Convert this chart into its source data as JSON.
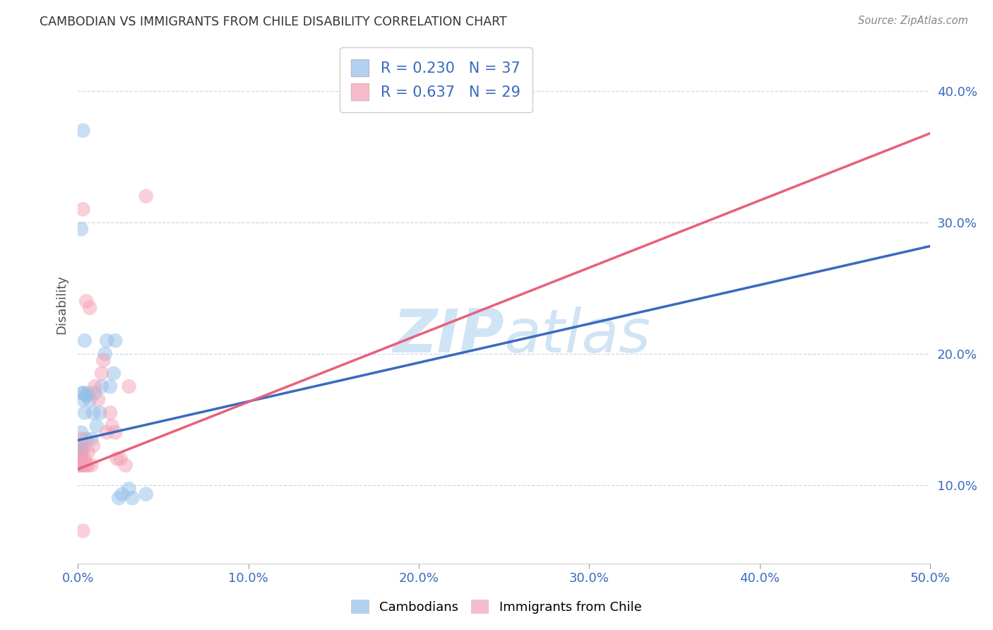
{
  "title": "CAMBODIAN VS IMMIGRANTS FROM CHILE DISABILITY CORRELATION CHART",
  "source": "Source: ZipAtlas.com",
  "xlabel_vals": [
    0.0,
    0.1,
    0.2,
    0.3,
    0.4,
    0.5
  ],
  "ylabel_vals": [
    0.1,
    0.2,
    0.3,
    0.4
  ],
  "xlim": [
    0.0,
    0.5
  ],
  "ylim": [
    0.04,
    0.435
  ],
  "cambodian_R": 0.23,
  "cambodian_N": 37,
  "chile_R": 0.637,
  "chile_N": 29,
  "cambodian_color": "#92bee8",
  "chile_color": "#f4a0b5",
  "cambodian_line_color": "#3a6abf",
  "chile_line_color": "#e8607a",
  "watermark_color": "#d0e4f5",
  "legend_label_cam": "Cambodians",
  "legend_label_chile": "Immigrants from Chile",
  "cambodian_line_x0": 0.0,
  "cambodian_line_y0": 0.134,
  "cambodian_line_x1": 0.5,
  "cambodian_line_y1": 0.282,
  "chile_line_x0": 0.0,
  "chile_line_y0": 0.112,
  "chile_line_x1": 0.5,
  "chile_line_y1": 0.368,
  "cambodian_x": [
    0.001,
    0.001,
    0.001,
    0.001,
    0.001,
    0.002,
    0.002,
    0.002,
    0.002,
    0.003,
    0.003,
    0.003,
    0.003,
    0.004,
    0.004,
    0.005,
    0.005,
    0.006,
    0.007,
    0.008,
    0.009,
    0.01,
    0.011,
    0.013,
    0.014,
    0.016,
    0.017,
    0.019,
    0.021,
    0.022,
    0.024,
    0.026,
    0.03,
    0.002,
    0.003,
    0.04,
    0.032
  ],
  "cambodian_y": [
    0.125,
    0.128,
    0.122,
    0.115,
    0.118,
    0.13,
    0.126,
    0.14,
    0.121,
    0.17,
    0.165,
    0.127,
    0.17,
    0.155,
    0.21,
    0.168,
    0.135,
    0.17,
    0.165,
    0.135,
    0.155,
    0.17,
    0.145,
    0.155,
    0.175,
    0.2,
    0.21,
    0.175,
    0.185,
    0.21,
    0.09,
    0.093,
    0.097,
    0.295,
    0.37,
    0.093,
    0.09
  ],
  "chile_x": [
    0.001,
    0.001,
    0.002,
    0.002,
    0.003,
    0.003,
    0.004,
    0.005,
    0.006,
    0.007,
    0.008,
    0.009,
    0.01,
    0.012,
    0.014,
    0.015,
    0.017,
    0.019,
    0.02,
    0.022,
    0.023,
    0.025,
    0.028,
    0.03,
    0.002,
    0.005,
    0.04,
    0.003,
    0.006
  ],
  "chile_y": [
    0.12,
    0.115,
    0.125,
    0.115,
    0.115,
    0.31,
    0.12,
    0.24,
    0.125,
    0.235,
    0.115,
    0.13,
    0.175,
    0.165,
    0.185,
    0.195,
    0.14,
    0.155,
    0.145,
    0.14,
    0.12,
    0.12,
    0.115,
    0.175,
    0.135,
    0.115,
    0.32,
    0.065,
    0.115
  ]
}
